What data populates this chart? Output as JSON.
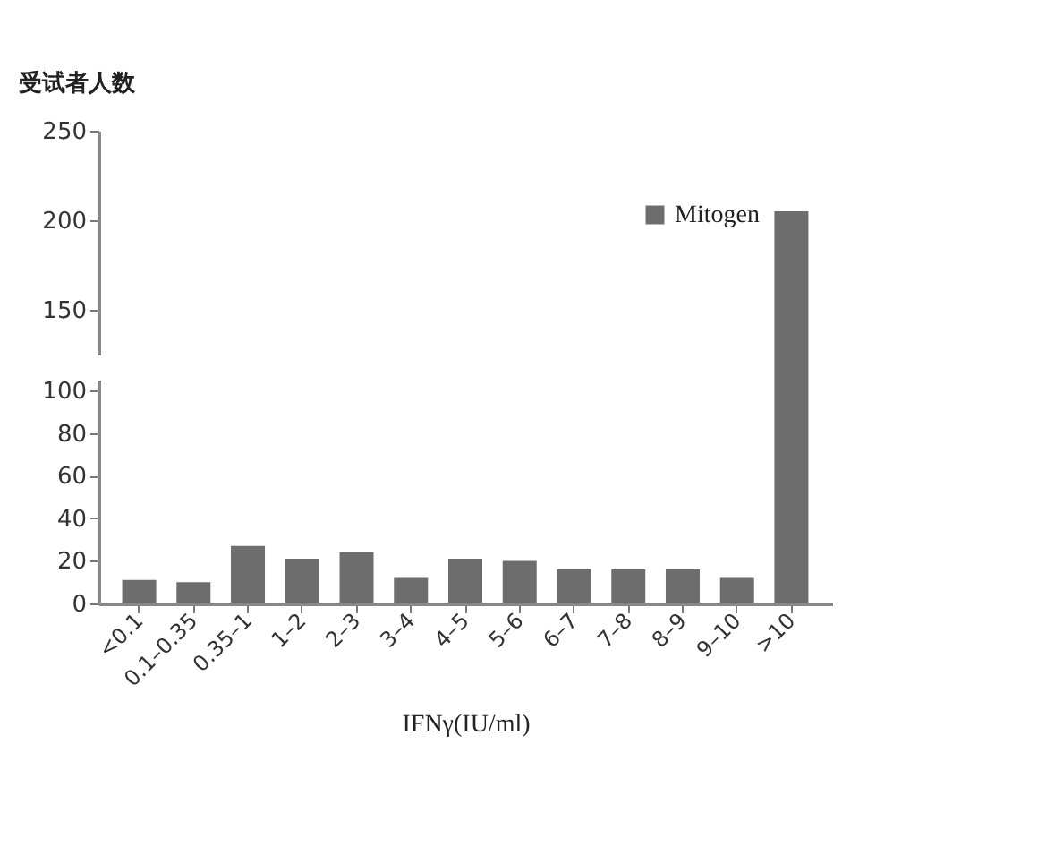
{
  "chart_data": [
    {
      "type": "bar",
      "ylabel": "受试者人数",
      "series": [
        {
          "name": "Mitogen",
          "color": "#6d6d6d",
          "values": [
            null,
            null,
            null,
            null,
            null,
            null,
            null,
            null,
            null,
            null,
            null,
            null,
            205
          ]
        }
      ],
      "ylim": [
        125,
        250
      ],
      "yticks": [
        150,
        200,
        250
      ],
      "tick_labels": "y",
      "legend": "top right",
      "grid": false
    },
    {
      "type": "bar",
      "xlabel": "IFNγ(IU/ml)",
      "categories": [
        "<0.1",
        "0.1–0.35",
        "0.35–1",
        "1–2",
        "2–3",
        "3–4",
        "4–5",
        "5–6",
        "6–7",
        "7–8",
        "8–9",
        "9–10",
        ">10"
      ],
      "series": [
        {
          "color": "#6d6d6d",
          "values": [
            11,
            10,
            27,
            21,
            24,
            12,
            21,
            20,
            16,
            16,
            16,
            12,
            null
          ]
        }
      ],
      "ylim": [
        0,
        105
      ],
      "yticks": [
        0,
        20,
        40,
        60,
        80,
        100
      ],
      "grid": false
    }
  ]
}
